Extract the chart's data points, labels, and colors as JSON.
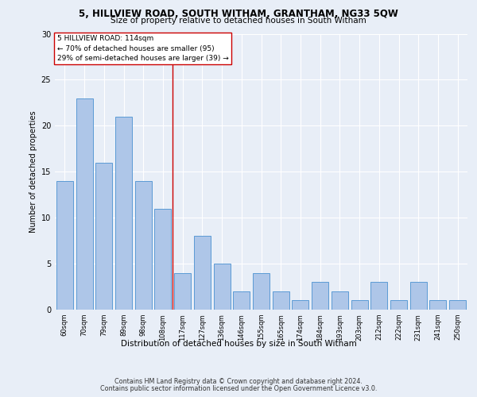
{
  "title1": "5, HILLVIEW ROAD, SOUTH WITHAM, GRANTHAM, NG33 5QW",
  "title2": "Size of property relative to detached houses in South Witham",
  "xlabel": "Distribution of detached houses by size in South Witham",
  "ylabel": "Number of detached properties",
  "categories": [
    "60sqm",
    "70sqm",
    "79sqm",
    "89sqm",
    "98sqm",
    "108sqm",
    "117sqm",
    "127sqm",
    "136sqm",
    "146sqm",
    "155sqm",
    "165sqm",
    "174sqm",
    "184sqm",
    "193sqm",
    "203sqm",
    "212sqm",
    "222sqm",
    "231sqm",
    "241sqm",
    "250sqm"
  ],
  "values": [
    14,
    23,
    16,
    21,
    14,
    11,
    4,
    8,
    5,
    2,
    4,
    2,
    1,
    3,
    2,
    1,
    3,
    1,
    3,
    1,
    1
  ],
  "bar_color": "#aec6e8",
  "bar_edge_color": "#5b9bd5",
  "vline_position": 5.5,
  "vline_color": "#cc0000",
  "annotation_line1": "5 HILLVIEW ROAD: 114sqm",
  "annotation_line2": "← 70% of detached houses are smaller (95)",
  "annotation_line3": "29% of semi-detached houses are larger (39) →",
  "ylim": [
    0,
    30
  ],
  "yticks": [
    0,
    5,
    10,
    15,
    20,
    25,
    30
  ],
  "footer1": "Contains HM Land Registry data © Crown copyright and database right 2024.",
  "footer2": "Contains public sector information licensed under the Open Government Licence v3.0.",
  "bg_color": "#e8eef7",
  "plot_bg_color": "#e8eef7"
}
